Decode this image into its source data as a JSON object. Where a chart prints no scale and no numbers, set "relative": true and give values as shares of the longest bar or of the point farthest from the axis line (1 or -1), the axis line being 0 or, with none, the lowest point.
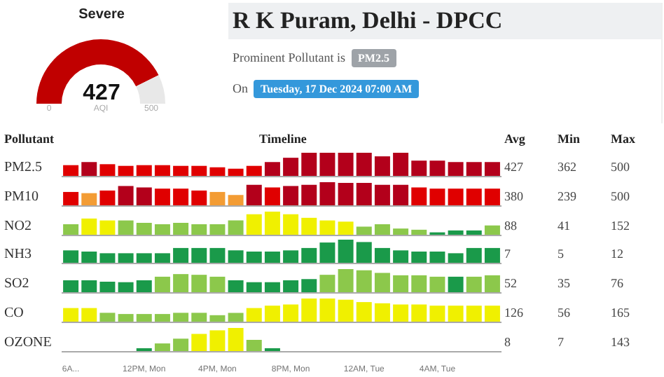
{
  "chart_data": [
    {
      "type": "donut",
      "title": "Severe",
      "categories": [
        null,
        null
      ],
      "values": [
        427,
        73
      ],
      "colors": [
        "#c00000",
        "#e8e8e8"
      ],
      "value_labels": [
        "427",
        null
      ],
      "annotations": [
        "0",
        "AQI",
        "500"
      ]
    },
    {
      "type": "other",
      "title": "R K Puram, Delhi - DPCC",
      "annotations": [
        "Prominent Pollutant is",
        "PM2.5",
        "On",
        "Tuesday, 17 Dec 2024 07:00 AM"
      ]
    },
    {
      "type": "other",
      "annotations": [
        "Pollutant",
        "Timeline",
        "Avg",
        "Min",
        "Max"
      ]
    },
    {
      "type": "bar",
      "title": "PM2.5",
      "relative": true,
      "categories": [
        null,
        null,
        null,
        null,
        null,
        null,
        null,
        null,
        null,
        null,
        null,
        null,
        null,
        null,
        null,
        null,
        null,
        null,
        null,
        null,
        null,
        null,
        null,
        null
      ],
      "values": [
        0.48,
        0.61,
        0.52,
        0.45,
        0.48,
        0.48,
        0.45,
        0.45,
        0.39,
        0.33,
        0.45,
        0.61,
        0.79,
        1,
        1,
        1,
        1,
        0.85,
        1,
        0.67,
        0.67,
        0.61,
        0.61,
        0.61
      ],
      "colors": [
        "#e00000",
        "#b3001b",
        "#e00000",
        "#e00000",
        "#e00000",
        "#e00000",
        "#e00000",
        "#e00000",
        "#e00000",
        "#e00000",
        "#e00000",
        "#b3001b",
        "#b3001b",
        "#b3001b",
        "#b3001b",
        "#b3001b",
        "#b3001b",
        "#b3001b",
        "#b3001b",
        "#b3001b",
        "#b3001b",
        "#b3001b",
        "#b3001b",
        "#b3001b"
      ],
      "annotations": [
        "427",
        "362",
        "500"
      ]
    },
    {
      "type": "bar",
      "title": "PM10",
      "relative": true,
      "categories": [
        null,
        null,
        null,
        null,
        null,
        null,
        null,
        null,
        null,
        null,
        null,
        null,
        null,
        null,
        null,
        null,
        null,
        null,
        null,
        null,
        null,
        null,
        null,
        null
      ],
      "values": [
        0.59,
        0.54,
        0.65,
        0.84,
        0.78,
        0.73,
        0.73,
        0.65,
        0.59,
        0.46,
        0.89,
        0.78,
        0.84,
        0.89,
        1,
        0.97,
        0.97,
        0.89,
        0.89,
        0.78,
        0.73,
        0.73,
        0.73,
        0.73
      ],
      "colors": [
        "#e00000",
        "#f39c34",
        "#e00000",
        "#b3001b",
        "#b3001b",
        "#e00000",
        "#e00000",
        "#e00000",
        "#f39c34",
        "#f39c34",
        "#b3001b",
        "#e00000",
        "#b3001b",
        "#b3001b",
        "#b3001b",
        "#b3001b",
        "#b3001b",
        "#b3001b",
        "#b3001b",
        "#e00000",
        "#e00000",
        "#e00000",
        "#e00000",
        "#e00000"
      ],
      "annotations": [
        "380",
        "239",
        "500"
      ]
    },
    {
      "type": "bar",
      "title": "NO2",
      "relative": true,
      "categories": [
        null,
        null,
        null,
        null,
        null,
        null,
        null,
        null,
        null,
        null,
        null,
        null,
        null,
        null,
        null,
        null,
        null,
        null,
        null,
        null,
        null,
        null,
        null,
        null
      ],
      "values": [
        0.47,
        0.71,
        0.63,
        0.63,
        0.53,
        0.47,
        0.53,
        0.47,
        0.47,
        0.63,
        0.89,
        1,
        0.89,
        0.74,
        0.63,
        0.58,
        0.37,
        0.47,
        0.29,
        0.24,
        0.13,
        0.21,
        0.21,
        0.42
      ],
      "colors": [
        "#8cc84b",
        "#f0f000",
        "#f0f000",
        "#8cc84b",
        "#8cc84b",
        "#8cc84b",
        "#8cc84b",
        "#8cc84b",
        "#8cc84b",
        "#8cc84b",
        "#f0f000",
        "#f0f000",
        "#f0f000",
        "#f0f000",
        "#f0f000",
        "#f0f000",
        "#8cc84b",
        "#8cc84b",
        "#8cc84b",
        "#8cc84b",
        "#1a9a4a",
        "#1a9a4a",
        "#1a9a4a",
        "#8cc84b"
      ],
      "annotations": [
        "88",
        "41",
        "152"
      ]
    },
    {
      "type": "bar",
      "title": "NH3",
      "relative": true,
      "categories": [
        null,
        null,
        null,
        null,
        null,
        null,
        null,
        null,
        null,
        null,
        null,
        null,
        null,
        null,
        null,
        null,
        null,
        null,
        null,
        null,
        null,
        null,
        null,
        null
      ],
      "values": [
        0.55,
        0.5,
        0.43,
        0.43,
        0.43,
        0.43,
        0.65,
        0.65,
        0.65,
        0.55,
        0.5,
        0.5,
        0.55,
        0.65,
        0.88,
        1,
        0.9,
        0.65,
        0.55,
        0.5,
        0.5,
        0.43,
        0.65,
        0.65
      ],
      "colors": [
        "#1a9a4a",
        "#1a9a4a",
        "#1a9a4a",
        "#1a9a4a",
        "#1a9a4a",
        "#1a9a4a",
        "#1a9a4a",
        "#1a9a4a",
        "#1a9a4a",
        "#1a9a4a",
        "#1a9a4a",
        "#1a9a4a",
        "#1a9a4a",
        "#1a9a4a",
        "#1a9a4a",
        "#1a9a4a",
        "#1a9a4a",
        "#1a9a4a",
        "#1a9a4a",
        "#1a9a4a",
        "#1a9a4a",
        "#1a9a4a",
        "#1a9a4a",
        "#1a9a4a"
      ],
      "annotations": [
        "7",
        "5",
        "12"
      ]
    },
    {
      "type": "bar",
      "title": "SO2",
      "relative": true,
      "categories": [
        null,
        null,
        null,
        null,
        null,
        null,
        null,
        null,
        null,
        null,
        null,
        null,
        null,
        null,
        null,
        null,
        null,
        null,
        null,
        null,
        null,
        null,
        null,
        null
      ],
      "values": [
        0.53,
        0.53,
        0.47,
        0.45,
        0.53,
        0.68,
        0.79,
        0.76,
        0.68,
        0.53,
        0.45,
        0.45,
        0.53,
        0.58,
        0.76,
        1,
        0.95,
        0.84,
        0.74,
        0.74,
        0.68,
        0.68,
        0.68,
        0.74
      ],
      "colors": [
        "#1a9a4a",
        "#1a9a4a",
        "#1a9a4a",
        "#1a9a4a",
        "#1a9a4a",
        "#8cc84b",
        "#8cc84b",
        "#8cc84b",
        "#8cc84b",
        "#1a9a4a",
        "#1a9a4a",
        "#1a9a4a",
        "#1a9a4a",
        "#1a9a4a",
        "#8cc84b",
        "#8cc84b",
        "#8cc84b",
        "#8cc84b",
        "#8cc84b",
        "#8cc84b",
        "#8cc84b",
        "#1a9a4a",
        "#8cc84b",
        "#8cc84b"
      ],
      "annotations": [
        "52",
        "35",
        "76"
      ]
    },
    {
      "type": "bar",
      "title": "CO",
      "relative": true,
      "categories": [
        null,
        null,
        null,
        null,
        null,
        null,
        null,
        null,
        null,
        null,
        null,
        null,
        null,
        null,
        null,
        null,
        null,
        null,
        null,
        null,
        null,
        null,
        null,
        null
      ],
      "values": [
        0.6,
        0.6,
        0.4,
        0.35,
        0.35,
        0.35,
        0.4,
        0.4,
        0.3,
        0.4,
        0.6,
        0.7,
        0.75,
        1,
        1,
        0.95,
        0.85,
        0.8,
        0.75,
        0.75,
        0.7,
        0.7,
        0.7,
        0.7
      ],
      "colors": [
        "#f0f000",
        "#f0f000",
        "#8cc84b",
        "#8cc84b",
        "#8cc84b",
        "#8cc84b",
        "#8cc84b",
        "#8cc84b",
        "#8cc84b",
        "#8cc84b",
        "#f0f000",
        "#f0f000",
        "#f0f000",
        "#f0f000",
        "#f0f000",
        "#f0f000",
        "#f0f000",
        "#f0f000",
        "#f0f000",
        "#f0f000",
        "#f0f000",
        "#f0f000",
        "#f0f000",
        "#f0f000"
      ],
      "annotations": [
        "126",
        "56",
        "165"
      ]
    },
    {
      "type": "bar",
      "title": "OZONE",
      "relative": true,
      "categories": [
        "6A...",
        null,
        null,
        null,
        "12PM, Mon",
        null,
        null,
        null,
        "4PM, Mon",
        null,
        null,
        null,
        "8PM, Mon",
        null,
        null,
        null,
        "12AM, Tue",
        null,
        null,
        null,
        "4AM, Tue",
        null,
        null,
        null
      ],
      "values": [
        0,
        0,
        0,
        0,
        0.15,
        0.35,
        0.55,
        0.75,
        0.9,
        1,
        0.5,
        0.15,
        0,
        0,
        0,
        0,
        0,
        0,
        0,
        0,
        0,
        0,
        0,
        0
      ],
      "colors": [
        "#1a9a4a",
        "#1a9a4a",
        "#1a9a4a",
        "#1a9a4a",
        "#1a9a4a",
        "#8cc84b",
        "#8cc84b",
        "#f0f000",
        "#f0f000",
        "#f0f000",
        "#8cc84b",
        "#1a9a4a",
        "#1a9a4a",
        "#1a9a4a",
        "#1a9a4a",
        "#1a9a4a",
        "#1a9a4a",
        "#1a9a4a",
        "#1a9a4a",
        "#1a9a4a",
        "#1a9a4a",
        "#1a9a4a",
        "#1a9a4a",
        "#1a9a4a"
      ],
      "annotations": [
        "8",
        "7",
        "143"
      ]
    }
  ]
}
